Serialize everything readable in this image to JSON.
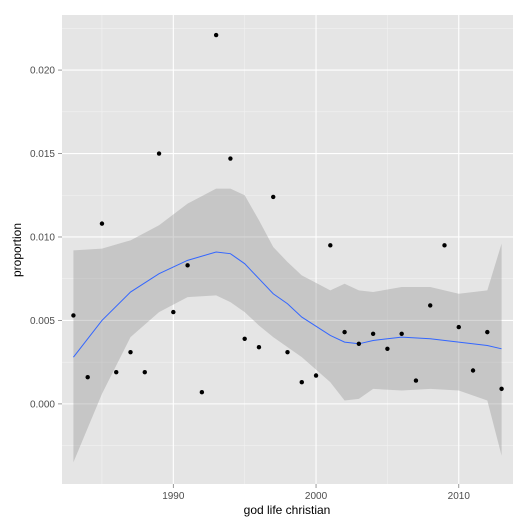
{
  "chart_data": {
    "type": "scatter",
    "title": "",
    "xlabel": "god life christian",
    "ylabel": "proportion",
    "xlim": [
      1982.2,
      2013.8
    ],
    "ylim": [
      -0.0048,
      0.0233
    ],
    "x_ticks": [
      1990,
      2000,
      2010
    ],
    "x_tick_labels": [
      "1990",
      "2000",
      "2010"
    ],
    "y_ticks": [
      0.0,
      0.005,
      0.01,
      0.015,
      0.02
    ],
    "y_tick_labels": [
      "0.000",
      "0.005",
      "0.010",
      "0.015",
      "0.020"
    ],
    "grid": true,
    "points": {
      "x": [
        1983,
        1984,
        1985,
        1986,
        1987,
        1988,
        1989,
        1990,
        1991,
        1992,
        1993,
        1994,
        1995,
        1996,
        1997,
        1998,
        1999,
        2000,
        2001,
        2002,
        2003,
        2004,
        2005,
        2006,
        2007,
        2008,
        2009,
        2010,
        2011,
        2012,
        2013
      ],
      "y": [
        0.0053,
        0.0016,
        0.0108,
        0.0019,
        0.0031,
        0.0019,
        0.015,
        0.0055,
        0.0083,
        0.0007,
        0.0221,
        0.0147,
        0.0039,
        0.0034,
        0.0124,
        0.0031,
        0.0013,
        0.0017,
        0.0095,
        0.0043,
        0.0036,
        0.0042,
        0.0033,
        0.0042,
        0.0014,
        0.0059,
        0.0095,
        0.0046,
        0.002,
        0.0043,
        0.0009
      ]
    },
    "smooth": {
      "x": [
        1983,
        1985,
        1987,
        1989,
        1991,
        1993,
        1994,
        1995,
        1996,
        1997,
        1998,
        1999,
        2001,
        2002,
        2003,
        2004,
        2006,
        2008,
        2010,
        2012,
        2013
      ],
      "y": [
        0.0028,
        0.005,
        0.0067,
        0.0078,
        0.0086,
        0.0091,
        0.009,
        0.0084,
        0.0075,
        0.0066,
        0.006,
        0.0052,
        0.0041,
        0.0037,
        0.0036,
        0.0038,
        0.004,
        0.0039,
        0.0037,
        0.0035,
        0.0033
      ],
      "ymin": [
        -0.0035,
        0.0006,
        0.004,
        0.0055,
        0.0064,
        0.0065,
        0.0061,
        0.0055,
        0.0047,
        0.004,
        0.0034,
        0.0028,
        0.0013,
        0.0002,
        0.0003,
        0.0009,
        0.0008,
        0.0009,
        0.0008,
        0.0002,
        -0.0031
      ],
      "ymax": [
        0.0092,
        0.0093,
        0.0098,
        0.0107,
        0.012,
        0.0129,
        0.0129,
        0.0125,
        0.011,
        0.0094,
        0.0085,
        0.0077,
        0.0068,
        0.0072,
        0.0068,
        0.0067,
        0.007,
        0.007,
        0.0066,
        0.0068,
        0.0096
      ]
    },
    "colors": {
      "panel": "#e5e5e5",
      "grid_major": "#ffffff",
      "grid_minor": "#f2f2f2",
      "point": "#000000",
      "smooth_line": "#3366ff",
      "ribbon": "#999999"
    }
  }
}
